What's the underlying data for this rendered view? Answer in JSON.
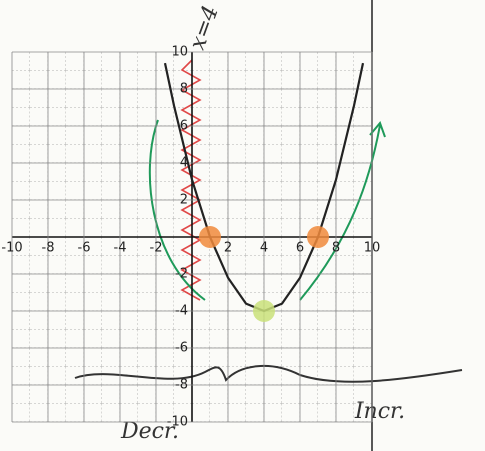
{
  "chart_data": {
    "type": "line",
    "annotations": {
      "asymptote": "x=4",
      "left": "Decr.",
      "right": "Incr."
    },
    "x": [
      -1.5,
      -1,
      0,
      1,
      2,
      3,
      4,
      5,
      6,
      7,
      8,
      9,
      9.5
    ],
    "series": [
      {
        "color": "#222222",
        "values": [
          9.4,
          7.1,
          3.1,
          0,
          -2.2,
          -3.6,
          -4,
          -3.6,
          -2.2,
          0,
          3.1,
          7.1,
          9.4
        ]
      }
    ],
    "points": [
      {
        "x": 1,
        "y": 0,
        "color": "#f08a3c"
      },
      {
        "x": 7,
        "y": 0,
        "color": "#f08a3c"
      },
      {
        "x": 4,
        "y": -4,
        "color": "#c9e07a"
      }
    ],
    "xlim": [
      -10,
      10
    ],
    "ylim": [
      -10,
      10
    ],
    "xticks": [
      -10,
      -8,
      -6,
      -4,
      -2,
      2,
      4,
      6,
      8,
      10
    ],
    "yticks": [
      -10,
      -8,
      -6,
      -4,
      -2,
      2,
      4,
      6,
      8,
      10
    ],
    "grid": true
  }
}
